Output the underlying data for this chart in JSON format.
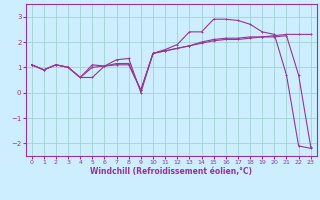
{
  "xlabel": "Windchill (Refroidissement éolien,°C)",
  "bg_color": "#cceeff",
  "line_color": "#993399",
  "grid_color": "#99cccc",
  "xlim": [
    -0.5,
    23.5
  ],
  "ylim": [
    -2.5,
    3.5
  ],
  "xticks": [
    0,
    1,
    2,
    3,
    4,
    5,
    6,
    7,
    8,
    9,
    10,
    11,
    12,
    13,
    14,
    15,
    16,
    17,
    18,
    19,
    20,
    21,
    22,
    23
  ],
  "yticks": [
    -2,
    -1,
    0,
    1,
    2,
    3
  ],
  "line1_x": [
    0,
    1,
    2,
    3,
    4,
    5,
    6,
    7,
    8,
    9,
    10,
    11,
    12,
    13,
    14,
    15,
    16,
    17,
    18,
    19,
    20,
    21,
    22,
    23
  ],
  "line1_y": [
    1.1,
    0.9,
    1.1,
    1.0,
    0.6,
    1.1,
    1.05,
    1.1,
    1.1,
    0.1,
    1.55,
    1.65,
    1.75,
    1.85,
    2.0,
    2.1,
    2.15,
    2.15,
    2.2,
    2.2,
    2.25,
    2.3,
    2.3,
    2.3
  ],
  "line2_x": [
    0,
    1,
    2,
    3,
    4,
    5,
    6,
    7,
    8,
    9,
    10,
    11,
    12,
    13,
    14,
    15,
    16,
    17,
    18,
    19,
    20,
    21,
    22,
    23
  ],
  "line2_y": [
    1.1,
    0.9,
    1.1,
    1.0,
    0.6,
    0.6,
    1.05,
    1.3,
    1.35,
    0.0,
    1.55,
    1.7,
    1.9,
    2.4,
    2.4,
    2.9,
    2.9,
    2.85,
    2.7,
    2.4,
    2.3,
    0.7,
    -2.1,
    -2.2
  ],
  "line3_x": [
    0,
    1,
    2,
    3,
    4,
    5,
    6,
    7,
    8,
    9,
    10,
    11,
    12,
    13,
    14,
    15,
    16,
    17,
    18,
    19,
    20,
    21,
    22,
    23
  ],
  "line3_y": [
    1.1,
    0.9,
    1.1,
    1.0,
    0.6,
    1.0,
    1.05,
    1.15,
    1.15,
    0.1,
    1.55,
    1.65,
    1.75,
    1.85,
    1.95,
    2.05,
    2.1,
    2.1,
    2.15,
    2.2,
    2.2,
    2.25,
    0.7,
    -2.15
  ]
}
